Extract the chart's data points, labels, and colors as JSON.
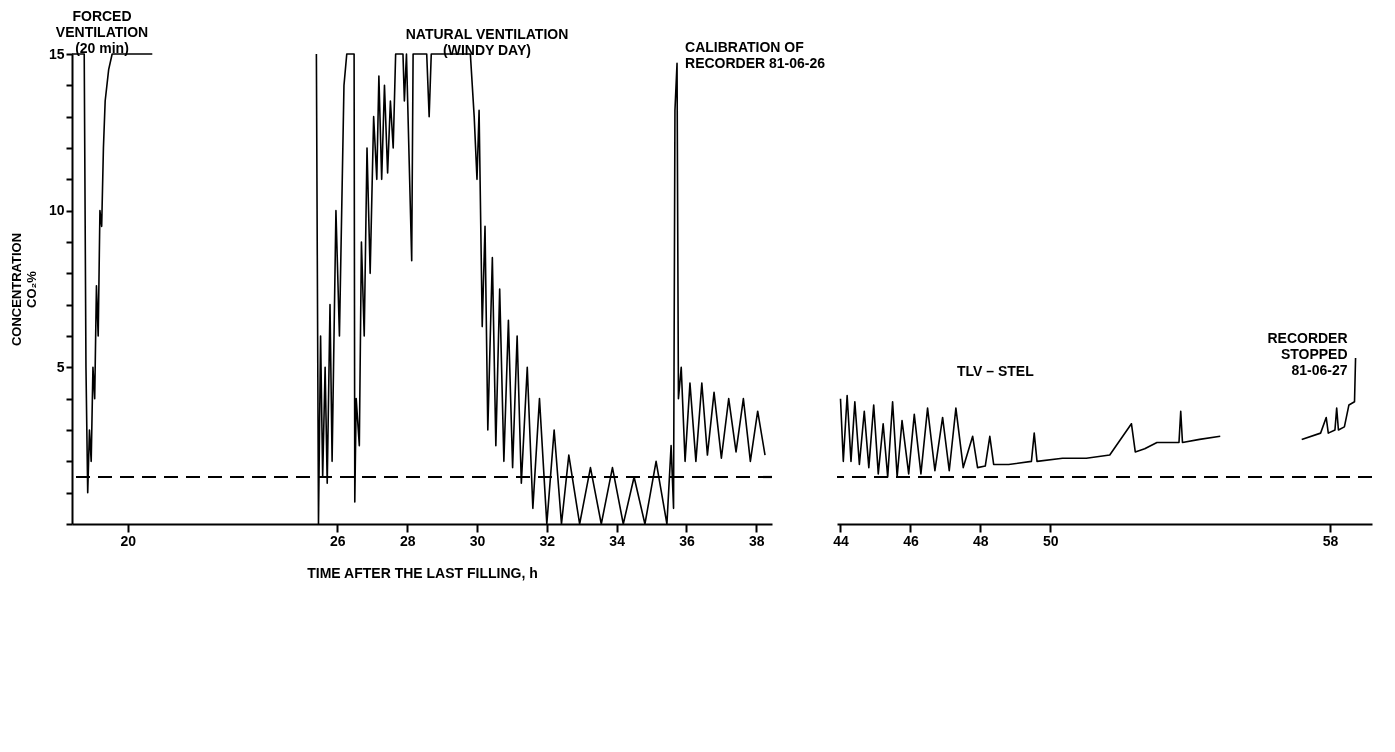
{
  "chart_data": [
    {
      "type": "line",
      "ylabel": "CONCENTRATION\nCO₂%",
      "xlabel": "TIME AFTER THE LAST FILLING, h",
      "xlim": [
        18.4,
        38.45
      ],
      "xticks": [
        20,
        26,
        28,
        30,
        32,
        34,
        36,
        38
      ],
      "ylim": [
        0,
        15
      ],
      "yticks": [
        {
          "value": 0,
          "label": null
        },
        {
          "value": 1,
          "label": null
        },
        {
          "value": 2,
          "label": null
        },
        {
          "value": 3,
          "label": null
        },
        {
          "value": 4,
          "label": null
        },
        5,
        {
          "value": 6,
          "label": null
        },
        {
          "value": 7,
          "label": null
        },
        {
          "value": 8,
          "label": null
        },
        {
          "value": 9,
          "label": null
        },
        10,
        {
          "value": 11,
          "label": null
        },
        {
          "value": 12,
          "label": null
        },
        {
          "value": 13,
          "label": null
        },
        {
          "value": 14,
          "label": null
        },
        15
      ],
      "series": [
        {
          "color": "#000000",
          "x": [
            18.4,
            18.75,
            18.8,
            18.85,
            18.9,
            18.95,
            19.0,
            19.05,
            19.1,
            19.15,
            19.2,
            19.25,
            19.3,
            19.35,
            19.45,
            19.55,
            20.7
          ],
          "values": [
            15,
            15,
            5,
            1,
            3,
            2,
            5,
            4,
            7.6,
            6,
            10,
            9.5,
            12,
            13.5,
            14.5,
            15,
            15
          ]
        },
        {
          "color": "#000000",
          "x": [
            25.4,
            25.46,
            25.52,
            25.58,
            25.65,
            25.71,
            25.79,
            25.85,
            25.96,
            26.06,
            26.19,
            26.27,
            26.48,
            26.5,
            26.54,
            26.63,
            26.69,
            26.77,
            26.85,
            26.94,
            27.04,
            27.13,
            27.19,
            27.27,
            27.35,
            27.44,
            27.52,
            27.6,
            27.67,
            27.88,
            27.92,
            27.98,
            28.13,
            28.17,
            28.56,
            28.63,
            28.69,
            29.4,
            29.81,
            29.92,
            30.0,
            30.06,
            30.15,
            30.23,
            30.31,
            30.44,
            30.54,
            30.65,
            30.77,
            30.9,
            31.02,
            31.15,
            31.27,
            31.44,
            31.6,
            31.79,
            32.0,
            32.21,
            32.42,
            32.63,
            32.94,
            33.25,
            33.56,
            33.88,
            34.19,
            34.5,
            34.81,
            35.13,
            35.44,
            35.56,
            35.63,
            35.67,
            35.73,
            35.77,
            35.85,
            35.96,
            36.1,
            36.27,
            36.44,
            36.6,
            36.79,
            37.0,
            37.21,
            37.42,
            37.63,
            37.83,
            38.04,
            38.25
          ],
          "values": [
            15,
            0,
            6,
            1.5,
            5,
            1.3,
            7,
            2,
            10,
            6,
            14,
            15,
            15,
            0.7,
            4,
            2.5,
            9,
            6,
            12,
            8,
            13,
            11,
            14.3,
            11,
            14,
            11.2,
            13.5,
            12,
            15,
            15,
            13.5,
            15,
            8.4,
            15,
            15,
            13,
            15,
            15,
            15,
            13,
            11,
            13.2,
            6.3,
            9.5,
            3,
            8.5,
            2.5,
            7.5,
            2,
            6.5,
            1.8,
            6,
            1.3,
            5,
            0.5,
            4,
            0,
            3,
            0,
            2.2,
            0,
            1.8,
            0,
            1.8,
            0,
            1.5,
            0,
            2,
            0,
            2.5,
            0.5,
            13.2,
            14.7,
            4,
            5,
            2,
            4.5,
            2,
            4.5,
            2.2,
            4.2,
            2.1,
            4.0,
            2.3,
            4.0,
            2.0,
            3.6,
            2.2
          ]
        }
      ],
      "ref_lines": [
        {
          "axis": "y",
          "value": 1.5,
          "line_style": "dashed"
        }
      ],
      "annotations": [
        "FORCED\nVENTILATION\n(20 min)",
        "NATURAL VENTILATION\n(WINDY DAY)",
        {
          "text": "CALIBRATION OF\nRECORDER 81-06-26",
          "x": 35.73,
          "y": 14.7
        }
      ]
    },
    {
      "type": "line",
      "xlim": [
        43.9,
        59.2
      ],
      "xticks": [
        44,
        46,
        48,
        50,
        58
      ],
      "ylim": [
        0,
        15
      ],
      "tick_labels": "x",
      "series": [
        {
          "color": "#000000",
          "x": [
            44.0,
            44.08,
            44.19,
            44.3,
            44.41,
            44.54,
            44.68,
            44.81,
            44.95,
            45.08,
            45.22,
            45.35,
            45.49,
            45.62,
            45.76,
            45.95,
            46.11,
            46.3,
            46.49,
            46.7,
            46.92,
            47.11,
            47.3,
            47.51,
            47.78,
            47.92,
            48.14,
            48.27,
            48.38,
            48.81,
            49.46,
            49.54,
            49.62,
            50.35,
            51.03,
            51.7,
            52.32,
            52.43,
            52.7,
            53.05,
            53.68,
            53.73,
            53.78,
            54.27,
            54.86
          ],
          "values": [
            4.0,
            2.0,
            4.1,
            2.0,
            3.9,
            1.9,
            3.6,
            1.8,
            3.8,
            1.6,
            3.2,
            1.5,
            3.9,
            1.5,
            3.3,
            1.6,
            3.5,
            1.6,
            3.7,
            1.7,
            3.4,
            1.7,
            3.7,
            1.8,
            2.8,
            1.8,
            1.85,
            2.8,
            1.9,
            1.9,
            2.0,
            2.9,
            2.0,
            2.1,
            2.1,
            2.2,
            3.2,
            2.3,
            2.4,
            2.6,
            2.6,
            3.6,
            2.6,
            2.7,
            2.8
          ]
        },
        {
          "color": "#000000",
          "x": [
            57.19,
            57.73,
            57.89,
            57.95,
            58.14,
            58.19,
            58.24,
            58.41,
            58.54,
            58.7,
            58.73
          ],
          "values": [
            2.7,
            2.9,
            3.4,
            2.9,
            3.0,
            3.7,
            3.0,
            3.1,
            3.8,
            3.9,
            5.3
          ]
        }
      ],
      "ref_lines": [
        {
          "axis": "y",
          "value": 1.5,
          "line_style": "dashed",
          "label": "TLV – STEL"
        }
      ],
      "annotations": [
        {
          "text": "RECORDER\nSTOPPED\n81-06-27",
          "x": 58.73,
          "y": 5.3
        }
      ]
    }
  ]
}
